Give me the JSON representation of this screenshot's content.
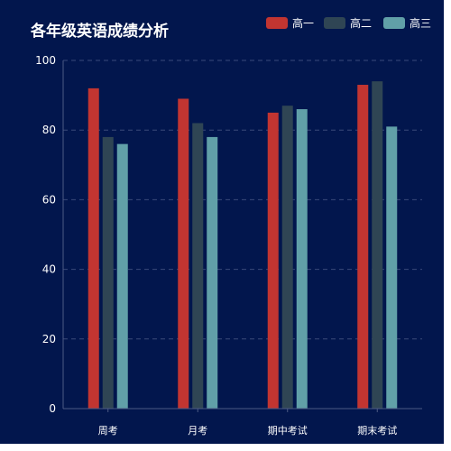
{
  "chart_data": {
    "type": "bar",
    "title": "各年级英语成绩分析",
    "categories": [
      "周考",
      "月考",
      "期中考试",
      "期末考试"
    ],
    "series": [
      {
        "name": "高一",
        "color": "#c23531",
        "values": [
          92,
          89,
          85,
          93
        ]
      },
      {
        "name": "高二",
        "color": "#2f4554",
        "values": [
          78,
          82,
          87,
          94
        ]
      },
      {
        "name": "高三",
        "color": "#61a0a8",
        "values": [
          76,
          78,
          86,
          81
        ]
      }
    ],
    "ylim": [
      0,
      100
    ],
    "yticks": [
      0,
      20,
      40,
      60,
      80,
      100
    ],
    "xlabel": "",
    "ylabel": "",
    "grid": true,
    "legend_position": "top-right",
    "background": "#02164d"
  }
}
